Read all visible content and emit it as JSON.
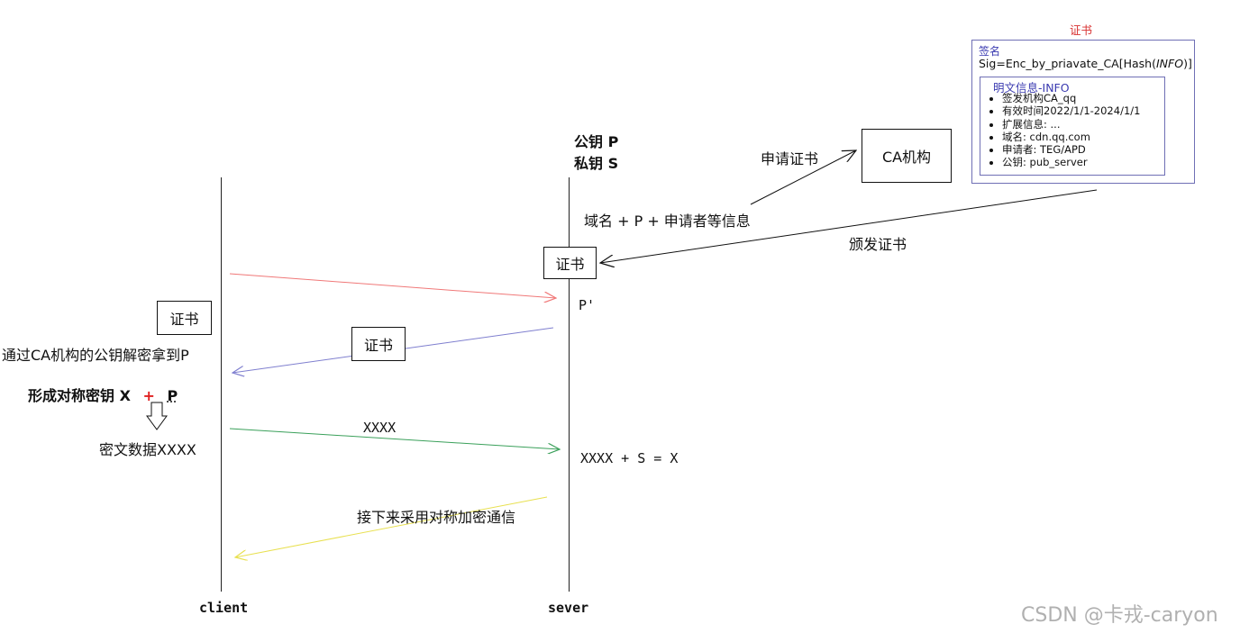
{
  "server_keys": {
    "public": "公钥 P",
    "private": "私钥 S"
  },
  "ca": {
    "label": "CA机构",
    "request_label": "申请证书",
    "issue_label": "颁发证书"
  },
  "domain_info": "域名 + P + 申请者等信息",
  "certificate": {
    "title": "证书",
    "signature": {
      "title": "签名",
      "prefix": "Sig=Enc_by_priavate_CA[Hash(",
      "italic": "INFO",
      "suffix": ")]"
    },
    "info": {
      "title": "明文信息-INFO",
      "items": [
        "签发机构CA_qq",
        "有效时间2022/1/1-2024/1/1",
        "扩展信息: ...",
        "域名: cdn.qq.com",
        "申请者: TEG/APD",
        "公钥: pub_server"
      ]
    }
  },
  "labels": {
    "cert_server": "证书",
    "cert_client": "证书",
    "cert_in_transit": "证书",
    "p_prime": "P'",
    "decrypt": "通过CA机构的公钥解密拿到P",
    "form_key_prefix": "形成对称密钥 X",
    "form_key_plus": "+",
    "form_key_suffix": "P",
    "ciphertext": "密文数据XXXX",
    "xxxx": "XXXX",
    "server_calc": "XXXX + S = X",
    "symmetric_comm": "接下来采用对称加密通信",
    "client": "client",
    "server": "sever"
  },
  "colors": {
    "red_arrow": "#f07878",
    "blue_arrow": "#7f7fcf",
    "green_arrow": "#3aa05a",
    "yellow_arrow": "#f2ec5a",
    "plus_red": "#e02020",
    "cert_title": "#d83030"
  },
  "watermark": "CSDN @卡戎-caryon"
}
